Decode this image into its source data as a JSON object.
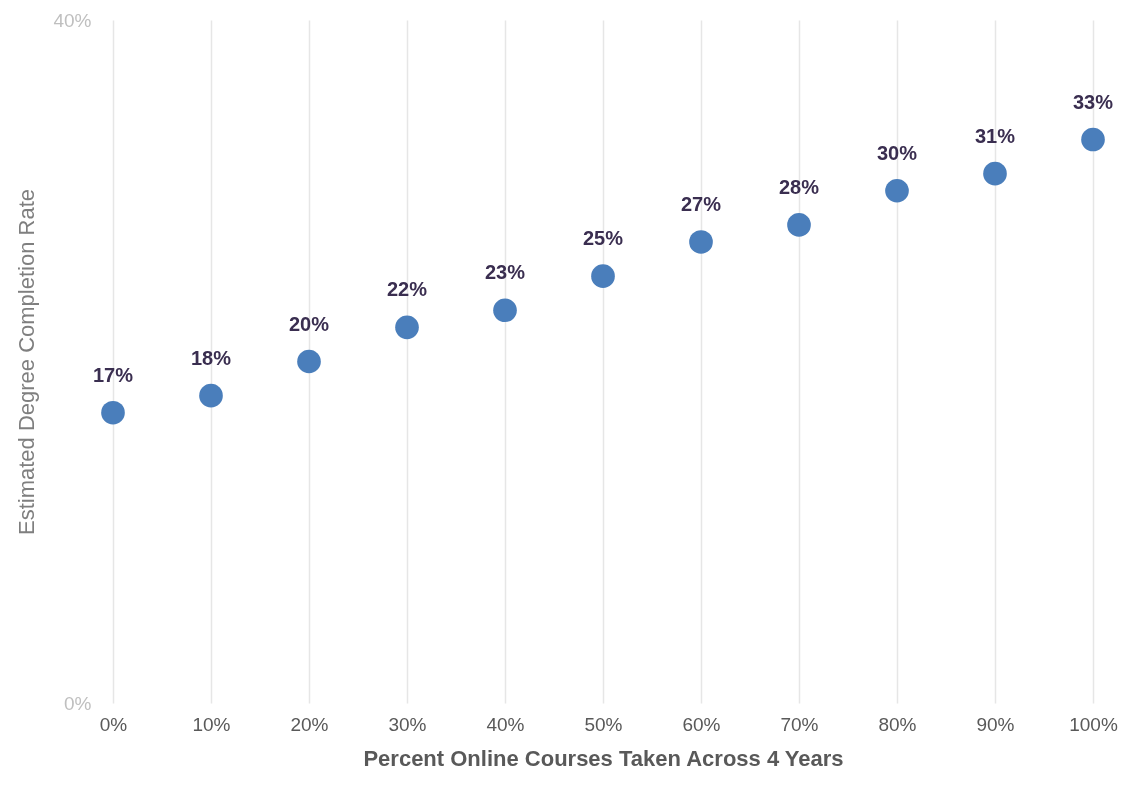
{
  "chart_data": {
    "type": "scatter",
    "xlabel": "Percent Online Courses Taken Across 4 Years",
    "ylabel": "Estimated Degree Completion Rate",
    "x": [
      0,
      10,
      20,
      30,
      40,
      50,
      60,
      70,
      80,
      90,
      100
    ],
    "series": [
      {
        "color": "#4a7ebb",
        "values": [
          17,
          18,
          20,
          22,
          23,
          25,
          27,
          28,
          30,
          31,
          33
        ],
        "value_labels": [
          "17%",
          "18%",
          "20%",
          "22%",
          "23%",
          "25%",
          "27%",
          "28%",
          "30%",
          "31%",
          "33%"
        ]
      }
    ],
    "xlim": [
      0,
      100
    ],
    "ylim": [
      0,
      40
    ],
    "xticks": [
      {
        "value": 0,
        "label": "0%"
      },
      {
        "value": 10,
        "label": "10%"
      },
      {
        "value": 20,
        "label": "20%"
      },
      {
        "value": 30,
        "label": "30%"
      },
      {
        "value": 40,
        "label": "40%"
      },
      {
        "value": 50,
        "label": "50%"
      },
      {
        "value": 60,
        "label": "60%"
      },
      {
        "value": 70,
        "label": "70%"
      },
      {
        "value": 80,
        "label": "80%"
      },
      {
        "value": 90,
        "label": "90%"
      },
      {
        "value": 100,
        "label": "100%"
      }
    ],
    "yticks": [
      {
        "value": 0,
        "label": "0%"
      },
      {
        "value": 40,
        "label": "40%"
      }
    ],
    "grid": "x",
    "marker": "circle"
  }
}
